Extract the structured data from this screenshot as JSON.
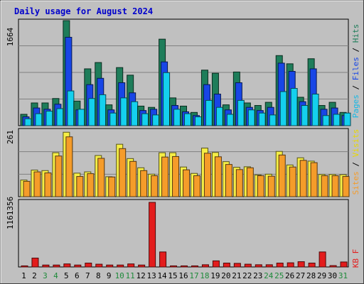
{
  "chart_data": [
    {
      "type": "bar",
      "title": "Daily usage for August 2024",
      "categories": [
        "1",
        "2",
        "3",
        "4",
        "5",
        "6",
        "7",
        "8",
        "9",
        "10",
        "11",
        "12",
        "13",
        "14",
        "15",
        "16",
        "17",
        "18",
        "19",
        "20",
        "21",
        "22",
        "23",
        "24",
        "25",
        "26",
        "27",
        "28",
        "29",
        "30",
        "31"
      ],
      "weekend_days": [
        "3",
        "4",
        "10",
        "11",
        "17",
        "18",
        "24",
        "25",
        "31"
      ],
      "ymax_label": "1664",
      "ymax": 1664,
      "series": [
        {
          "name": "Hits",
          "color": "#1e7d5a",
          "values": [
            180,
            360,
            360,
            430,
            1664,
            390,
            900,
            1000,
            330,
            920,
            800,
            310,
            290,
            1370,
            440,
            310,
            210,
            880,
            830,
            330,
            850,
            360,
            320,
            370,
            1110,
            980,
            450,
            1060,
            320,
            370,
            210
          ]
        },
        {
          "name": "Files",
          "color": "#1846e6",
          "values": [
            140,
            280,
            260,
            340,
            1400,
            250,
            650,
            750,
            250,
            680,
            520,
            240,
            260,
            1010,
            320,
            220,
            160,
            650,
            500,
            250,
            680,
            290,
            240,
            290,
            990,
            860,
            380,
            900,
            260,
            280,
            160
          ]
        },
        {
          "name": "Pages",
          "color": "#14d0ee",
          "values": [
            110,
            190,
            230,
            270,
            550,
            260,
            430,
            490,
            200,
            440,
            380,
            190,
            170,
            840,
            260,
            190,
            140,
            400,
            290,
            180,
            400,
            250,
            200,
            170,
            540,
            590,
            320,
            500,
            160,
            180,
            200
          ]
        }
      ],
      "right_label": {
        "pages": "Pages",
        "files": "Files",
        "hits": "Hits",
        "sep": " / "
      }
    },
    {
      "type": "bar",
      "ymax_label": "261",
      "ymax": 261,
      "series": [
        {
          "name": "Visits",
          "color": "#f5ee46",
          "values": [
            65,
            104,
            102,
            172,
            252,
            92,
            97,
            161,
            78,
            205,
            149,
            113,
            88,
            172,
            172,
            116,
            91,
            190,
            173,
            137,
            115,
            117,
            85,
            88,
            177,
            124,
            152,
            139,
            87,
            87,
            86
          ]
        },
        {
          "name": "Sites",
          "color": "#f59c2a",
          "values": [
            60,
            97,
            93,
            159,
            234,
            79,
            90,
            150,
            77,
            188,
            138,
            102,
            82,
            155,
            157,
            105,
            82,
            170,
            156,
            126,
            106,
            113,
            82,
            80,
            163,
            116,
            142,
            133,
            82,
            82,
            79
          ]
        }
      ],
      "right_label": {
        "sites": "Sites",
        "visits": "Visits",
        "sep": " / "
      }
    },
    {
      "type": "bar",
      "ymax_label": "1161356",
      "ymax": 1161356,
      "series": [
        {
          "name": "KB F",
          "color": "#e31c1c",
          "values": [
            20000,
            160000,
            35000,
            35000,
            55000,
            35000,
            70000,
            50000,
            35000,
            35000,
            55000,
            35000,
            1161356,
            270000,
            20000,
            20000,
            20000,
            40000,
            110000,
            70000,
            65000,
            50000,
            40000,
            40000,
            70000,
            75000,
            95000,
            70000,
            270000,
            25000,
            90000
          ]
        }
      ],
      "right_label": {
        "kb": "KB F"
      }
    }
  ]
}
